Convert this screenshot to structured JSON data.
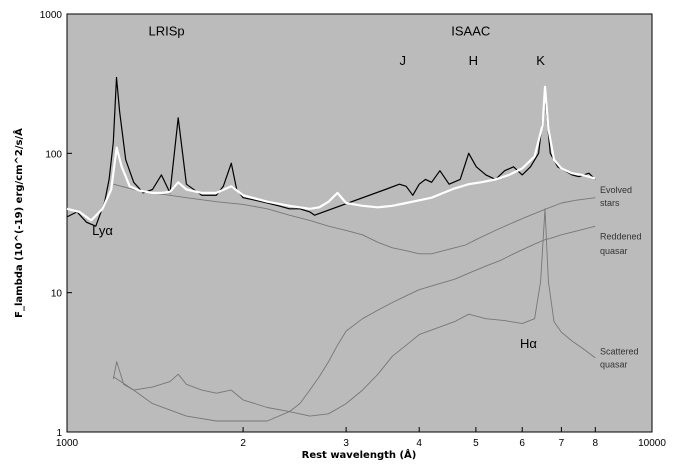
{
  "chart_data": {
    "type": "line",
    "scale": {
      "x": "log",
      "y": "log"
    },
    "xlim": [
      1000,
      10000
    ],
    "ylim": [
      1,
      1000
    ],
    "xlabel": "Rest wavelength (Å)",
    "ylabel": "F_lambda (10^(-19) erg/cm^2/s/Å",
    "x_tick_labels": [
      {
        "value": 1000,
        "label": "1000"
      },
      {
        "value": 2000,
        "label": "2"
      },
      {
        "value": 3000,
        "label": "3"
      },
      {
        "value": 4000,
        "label": "4"
      },
      {
        "value": 5000,
        "label": "5"
      },
      {
        "value": 6000,
        "label": "6"
      },
      {
        "value": 7000,
        "label": "7"
      },
      {
        "value": 8000,
        "label": "8"
      },
      {
        "value": 10000,
        "label": "10000"
      }
    ],
    "y_tick_labels": [
      {
        "value": 1,
        "label": "1"
      },
      {
        "value": 10,
        "label": "10"
      },
      {
        "value": 100,
        "label": "100"
      },
      {
        "value": 1000,
        "label": "1000"
      }
    ],
    "annotations": [
      {
        "text": "LRISp",
        "x": 1480,
        "y": 700
      },
      {
        "text": "ISAAC",
        "x": 4900,
        "y": 700
      },
      {
        "text": "J",
        "x": 3750,
        "y": 430
      },
      {
        "text": "H",
        "x": 4950,
        "y": 430
      },
      {
        "text": "K",
        "x": 6450,
        "y": 430
      },
      {
        "text": "Lyα",
        "x": 1150,
        "y": 26
      },
      {
        "text": "Hα",
        "x": 6150,
        "y": 4.0
      },
      {
        "text": "Evolved",
        "x": 8150,
        "y": 52
      },
      {
        "text": "stars",
        "x": 8150,
        "y": 42
      },
      {
        "text": "Reddened",
        "x": 8150,
        "y": 24
      },
      {
        "text": "quasar",
        "x": 8150,
        "y": 19
      },
      {
        "text": "Scattered",
        "x": 8150,
        "y": 3.6
      },
      {
        "text": "quasar",
        "x": 8150,
        "y": 2.9
      }
    ],
    "series": [
      {
        "key": "observed",
        "style": "observed spectrum",
        "color": "#000000",
        "x": [
          1000,
          1040,
          1080,
          1120,
          1160,
          1180,
          1200,
          1215,
          1230,
          1260,
          1300,
          1350,
          1400,
          1450,
          1500,
          1549,
          1600,
          1700,
          1800,
          1850,
          1909,
          1950,
          2000,
          2100,
          2200,
          2300,
          2400,
          2500,
          2600,
          2650,
          3500,
          3700,
          3800,
          3900,
          4000,
          4100,
          4200,
          4340,
          4500,
          4700,
          4861,
          5007,
          5200,
          5400,
          5600,
          5800,
          6000,
          6200,
          6400,
          6563,
          6700,
          6900,
          7100,
          7300,
          7500,
          7800,
          8000
        ],
        "y": [
          35,
          38,
          32,
          30,
          45,
          65,
          120,
          350,
          200,
          90,
          62,
          52,
          55,
          70,
          52,
          180,
          60,
          50,
          50,
          58,
          85,
          55,
          48,
          46,
          44,
          42,
          40,
          40,
          38,
          36,
          55,
          60,
          58,
          50,
          60,
          65,
          62,
          75,
          60,
          65,
          100,
          80,
          70,
          65,
          75,
          80,
          70,
          80,
          100,
          250,
          100,
          80,
          75,
          70,
          68,
          72,
          65
        ]
      },
      {
        "key": "model",
        "style": "model fit",
        "color": "#ffffff",
        "x": [
          1000,
          1050,
          1100,
          1150,
          1190,
          1216,
          1240,
          1280,
          1330,
          1400,
          1450,
          1500,
          1549,
          1600,
          1700,
          1800,
          1909,
          2000,
          2200,
          2400,
          2600,
          2700,
          2800,
          2900,
          3000,
          3200,
          3400,
          3600,
          3800,
          4000,
          4200,
          4400,
          4600,
          4861,
          5100,
          5400,
          5700,
          6000,
          6300,
          6500,
          6563,
          6650,
          6800,
          7000,
          7300,
          7600,
          8000
        ],
        "y": [
          40,
          38,
          33,
          40,
          55,
          110,
          80,
          58,
          54,
          52,
          52,
          53,
          62,
          55,
          52,
          52,
          58,
          50,
          45,
          42,
          40,
          41,
          45,
          52,
          44,
          42,
          41,
          42,
          44,
          46,
          48,
          52,
          56,
          60,
          62,
          65,
          70,
          78,
          95,
          160,
          300,
          150,
          90,
          78,
          72,
          70,
          66
        ]
      },
      {
        "key": "evolved",
        "style": "Evolved stars",
        "color": "#777777",
        "x": [
          1200,
          1300,
          1400,
          1500,
          1600,
          1800,
          2000,
          2200,
          2400,
          2600,
          2800,
          3000,
          3200,
          3400,
          3600,
          3800,
          4000,
          4200,
          4400,
          4600,
          4800,
          5000,
          5400,
          5800,
          6200,
          6600,
          7000,
          7400,
          8000
        ],
        "y": [
          60,
          55,
          52,
          50,
          48,
          45,
          43,
          40,
          36,
          33,
          30,
          28,
          26,
          23,
          21,
          20,
          19,
          19,
          20,
          21,
          22,
          24,
          28,
          32,
          36,
          40,
          44,
          46,
          48
        ]
      },
      {
        "key": "reddened",
        "style": "Reddened quasar",
        "color": "#777777",
        "x": [
          1200,
          1300,
          1400,
          1600,
          1800,
          2000,
          2200,
          2400,
          2500,
          2600,
          2700,
          2800,
          2900,
          3000,
          3200,
          3400,
          3600,
          3800,
          4000,
          4300,
          4600,
          4900,
          5200,
          5500,
          5800,
          6100,
          6400,
          6563,
          6700,
          7000,
          7500,
          8000
        ],
        "y": [
          2.5,
          2.0,
          1.6,
          1.3,
          1.2,
          1.2,
          1.2,
          1.4,
          1.6,
          2.0,
          2.5,
          3.2,
          4.2,
          5.3,
          6.5,
          7.5,
          8.5,
          9.5,
          10.5,
          11.5,
          12.5,
          14,
          15.5,
          17,
          19,
          21,
          23,
          24,
          24.5,
          26,
          28,
          30
        ]
      },
      {
        "key": "scattered",
        "style": "Scattered quasar",
        "color": "#777777",
        "x": [
          1200,
          1216,
          1250,
          1300,
          1400,
          1500,
          1549,
          1600,
          1700,
          1800,
          1909,
          2000,
          2200,
          2400,
          2600,
          2800,
          3000,
          3200,
          3400,
          3600,
          3800,
          4000,
          4300,
          4600,
          4861,
          5200,
          5600,
          6000,
          6300,
          6450,
          6563,
          6650,
          6800,
          7000,
          7300,
          7600,
          8000
        ],
        "y": [
          2.4,
          3.2,
          2.2,
          2.0,
          2.1,
          2.3,
          2.6,
          2.2,
          2.0,
          1.9,
          2.0,
          1.7,
          1.5,
          1.4,
          1.3,
          1.35,
          1.6,
          2.0,
          2.6,
          3.5,
          4.2,
          5.0,
          5.6,
          6.2,
          7.0,
          6.5,
          6.3,
          6.0,
          6.5,
          12,
          40,
          12,
          6.2,
          5.2,
          4.5,
          4.0,
          3.4
        ]
      }
    ]
  }
}
